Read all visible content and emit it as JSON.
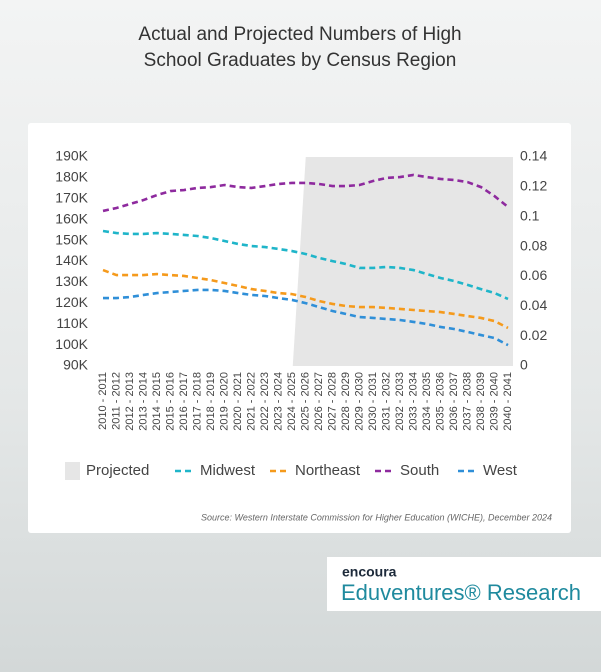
{
  "chart_data": {
    "type": "line",
    "title": [
      "Actual and Projected Numbers of High",
      "School Graduates by Census Region"
    ],
    "source": "Source: Western Interstate Commission for Higher Education (WICHE), December 2024",
    "categories": [
      "2010 - 2011",
      "2011 - 2012",
      "2012 - 2013",
      "2013 - 2014",
      "2014 - 2015",
      "2015 - 2016",
      "2016 - 2017",
      "2017 - 2018",
      "2018 - 2019",
      "2019 - 2020",
      "2020 - 2021",
      "2021 - 2022",
      "2022 - 2023",
      "2023 - 2024",
      "2024 - 2025",
      "2025 - 2026",
      "2026 - 2027",
      "2027 - 2028",
      "2028 - 2029",
      "2029 - 2030",
      "2030 - 2031",
      "2031 - 2032",
      "2032 - 2033",
      "2033 - 2034",
      "2034 - 2035",
      "2035 - 2036",
      "2036 - 2037",
      "2037 - 2038",
      "2038 - 2039",
      "2039 - 2040",
      "2040 - 2041"
    ],
    "projected": {
      "name": "Projected",
      "color": "#e6e6e6",
      "from": "2025 - 2026"
    },
    "series": [
      {
        "name": "Midwest",
        "color": "#1fb5c9",
        "values": [
          154.6,
          153.6,
          153.2,
          153.2,
          153.6,
          153.2,
          152.7,
          152.2,
          151.2,
          149.8,
          148.4,
          147.4,
          146.9,
          146,
          145,
          143.6,
          141.7,
          140.2,
          138.8,
          136.9,
          136.9,
          137.4,
          136.9,
          135.9,
          134,
          132.1,
          130.7,
          128.8,
          126.8,
          124.9,
          122.1
        ]
      },
      {
        "name": "Northeast",
        "color": "#f59a1c",
        "values": [
          135.9,
          133.5,
          133.5,
          133.5,
          134,
          133.5,
          133.1,
          132.1,
          131.1,
          129.7,
          128.3,
          126.8,
          125.9,
          124.9,
          124.4,
          123,
          121.1,
          119.7,
          118.7,
          118.2,
          118.2,
          117.8,
          117.3,
          116.8,
          116.3,
          115.8,
          114.9,
          113.9,
          113,
          111.5,
          108.2
        ]
      },
      {
        "name": "South",
        "color": "#8e2a9e",
        "values": [
          164.2,
          165.6,
          167.5,
          169.4,
          171.8,
          173.7,
          174.2,
          175.2,
          175.6,
          176.6,
          175.6,
          175.2,
          176.1,
          177.1,
          177.6,
          177.6,
          177.1,
          176.1,
          176.1,
          176.6,
          178.5,
          180,
          180.4,
          181.4,
          180.4,
          179.5,
          179,
          178,
          175.6,
          171.3,
          166.1
        ]
      },
      {
        "name": "West",
        "color": "#2f8fd8",
        "values": [
          122.5,
          122.5,
          123,
          124,
          124.9,
          125.4,
          125.9,
          126.4,
          126.4,
          125.9,
          124.9,
          124,
          123.5,
          122.5,
          121.6,
          120.1,
          118.2,
          116.3,
          114.9,
          113.4,
          113,
          112.5,
          112,
          111.1,
          110.1,
          108.7,
          107.7,
          106.3,
          104.8,
          103.4,
          100
        ]
      }
    ],
    "ylim": [
      90,
      190
    ],
    "yticks": [
      {
        "value": 90,
        "label": "90K"
      },
      {
        "value": 100,
        "label": "100K"
      },
      {
        "value": 110,
        "label": "110K"
      },
      {
        "value": 120,
        "label": "120K"
      },
      {
        "value": 130,
        "label": "130K"
      },
      {
        "value": 140,
        "label": "140K"
      },
      {
        "value": 150,
        "label": "150K"
      },
      {
        "value": 160,
        "label": "160K"
      },
      {
        "value": 170,
        "label": "170K"
      },
      {
        "value": 180,
        "label": "180K"
      },
      {
        "value": 190,
        "label": "190K"
      }
    ],
    "y2lim": [
      0,
      0.14
    ],
    "y2ticks": [
      0,
      0.02,
      0.04,
      0.06,
      0.08,
      0.1,
      0.12,
      0.14
    ]
  },
  "branding": {
    "company": "encoura",
    "product": "Eduventures® Research"
  }
}
